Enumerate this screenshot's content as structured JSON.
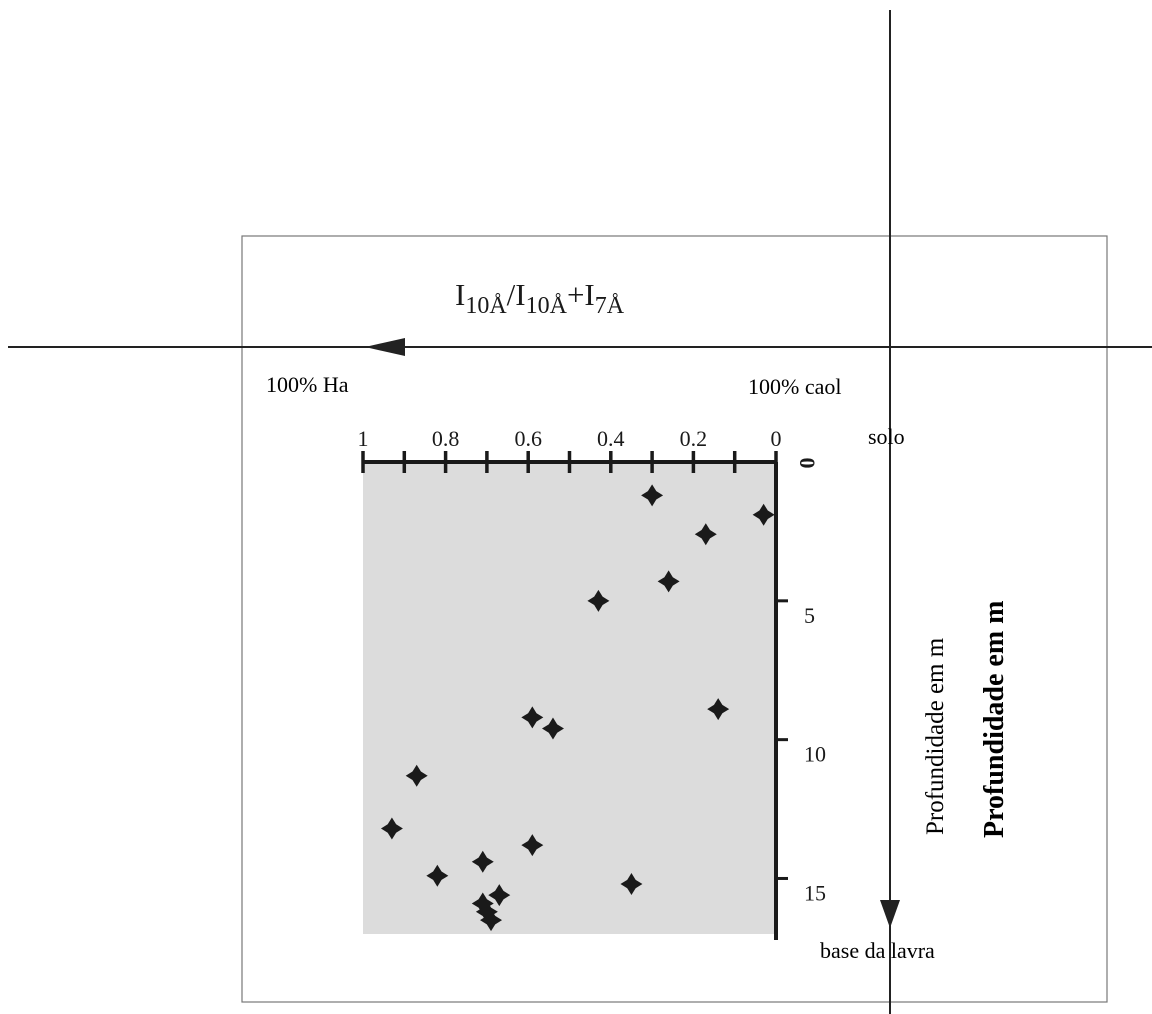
{
  "chart_data": {
    "type": "scatter",
    "title_parts": {
      "base": "I",
      "sub1": "10Å",
      "slash": "/I",
      "sub2": "10Å",
      "plus": "+I",
      "sub3": "7Å"
    },
    "left_end_label": "100% Ha",
    "right_end_label": "100% caol",
    "x_ticks": [
      "1",
      "0.8",
      "0.6",
      "0.4",
      "0.2",
      "0"
    ],
    "y_ticks": [
      "0",
      "5",
      "10",
      "15"
    ],
    "top_label": "solo",
    "bottom_label": "base da lavra",
    "ylabel": "Profundidade em m",
    "ylabel_bold": "Profundidade em m",
    "x_range": [
      1,
      0
    ],
    "y_range": [
      0,
      17
    ],
    "points": [
      {
        "x": 0.03,
        "y": 1.9
      },
      {
        "x": 0.3,
        "y": 1.2
      },
      {
        "x": 0.17,
        "y": 2.6
      },
      {
        "x": 0.26,
        "y": 4.3
      },
      {
        "x": 0.43,
        "y": 5.0
      },
      {
        "x": 0.14,
        "y": 8.9
      },
      {
        "x": 0.59,
        "y": 9.2
      },
      {
        "x": 0.54,
        "y": 9.6
      },
      {
        "x": 0.87,
        "y": 11.3
      },
      {
        "x": 0.93,
        "y": 13.2
      },
      {
        "x": 0.59,
        "y": 13.8
      },
      {
        "x": 0.71,
        "y": 14.4
      },
      {
        "x": 0.82,
        "y": 14.9
      },
      {
        "x": 0.35,
        "y": 15.2
      },
      {
        "x": 0.71,
        "y": 15.9
      },
      {
        "x": 0.67,
        "y": 15.6
      },
      {
        "x": 0.69,
        "y": 16.5
      },
      {
        "x": 0.7,
        "y": 16.2
      }
    ]
  }
}
